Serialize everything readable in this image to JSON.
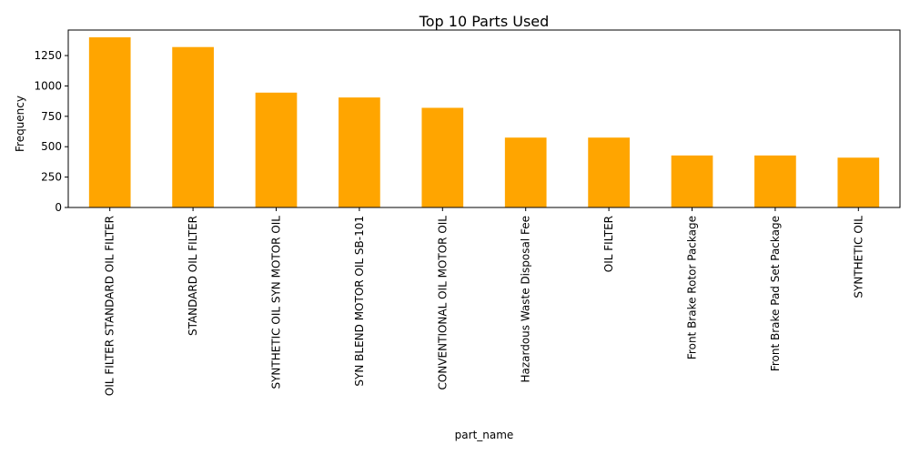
{
  "chart_data": {
    "type": "bar",
    "title": "Top 10 Parts Used",
    "xlabel": "part_name",
    "ylabel": "Frequency",
    "categories": [
      "OIL FILTER STANDARD OIL FILTER",
      "STANDARD OIL FILTER",
      "SYNTHETIC OIL SYN MOTOR OIL",
      "SYN BLEND MOTOR OIL SB-101",
      "CONVENTIONAL OIL MOTOR OIL",
      "Hazardous Waste Disposal Fee",
      "OIL FILTER",
      "Front Brake Rotor Package",
      "Front Brake Pad Set Package",
      "SYNTHETIC OIL"
    ],
    "values": [
      1400,
      1320,
      945,
      905,
      820,
      575,
      575,
      428,
      428,
      410
    ],
    "yticks": [
      "0",
      "250",
      "500",
      "750",
      "1000",
      "1250"
    ],
    "ylim": [
      0,
      1460
    ],
    "bar_color": "#ffa500",
    "grid": false,
    "legend": "none"
  }
}
